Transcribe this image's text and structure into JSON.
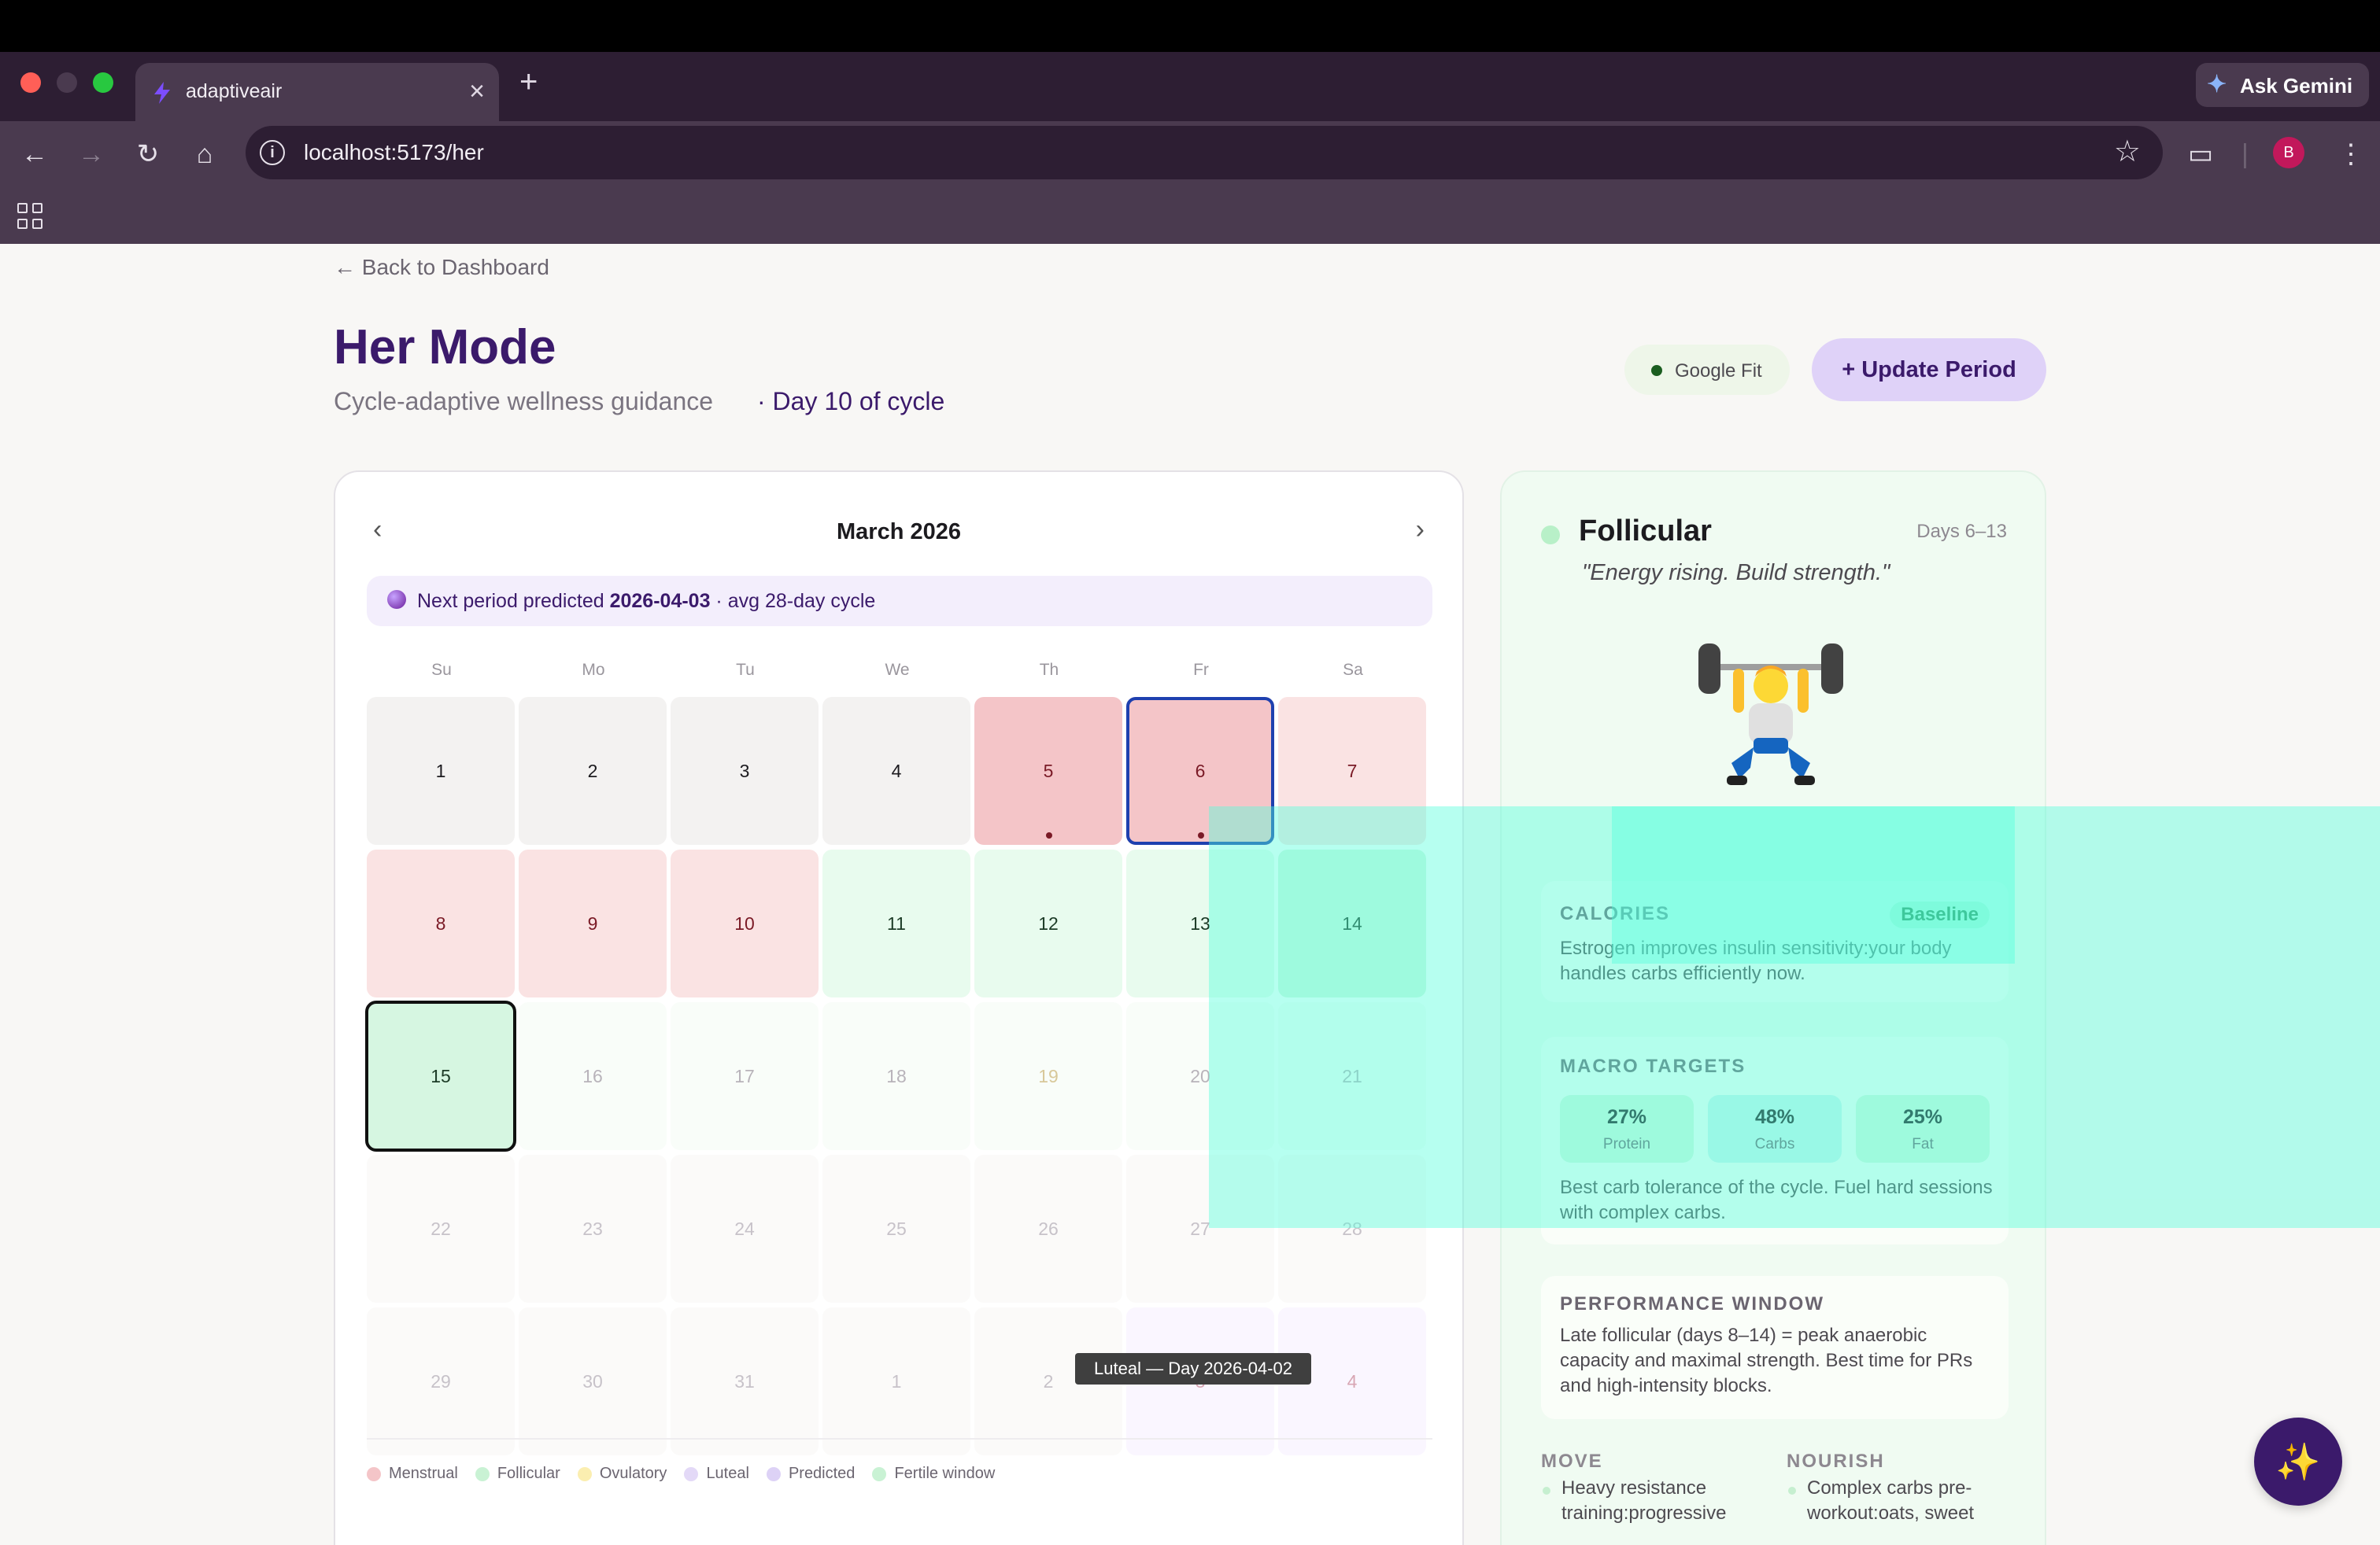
{
  "browser": {
    "tab_title": "adaptiveair",
    "tab_close": "×",
    "new_tab": "+",
    "gemini_label": "Ask Gemini",
    "url": "localhost:5173/her",
    "profile_initial": "B"
  },
  "header": {
    "back_link": "← Back to Dashboard",
    "title": "Her Mode",
    "subtitle": "Cycle-adaptive wellness guidance",
    "day_of_cycle": "· Day 10 of cycle",
    "google_fit": "Google Fit",
    "update_button": "+ Update Period"
  },
  "calendar": {
    "prev": "‹",
    "next": "›",
    "month": "March 2026",
    "prediction_prefix": "Next period predicted ",
    "prediction_date": "2026-04-03",
    "prediction_suffix": " · avg 28-day cycle",
    "weekdays": [
      "Su",
      "Mo",
      "Tu",
      "We",
      "Th",
      "Fr",
      "Sa"
    ],
    "weeks": [
      [
        "1",
        "2",
        "3",
        "4",
        "5",
        "6",
        "7"
      ],
      [
        "8",
        "9",
        "10",
        "11",
        "12",
        "13",
        "14"
      ],
      [
        "15",
        "16",
        "17",
        "18",
        "19",
        "20",
        "21"
      ],
      [
        "22",
        "23",
        "24",
        "25",
        "26",
        "27",
        "28"
      ],
      [
        "29",
        "30",
        "31",
        "1",
        "2",
        "3",
        "4"
      ]
    ],
    "tooltip": "Luteal — Day 2026-04-02",
    "legend": [
      {
        "label": "Menstrual",
        "color": "#f4c5c8"
      },
      {
        "label": "Follicular",
        "color": "#c9f2d4"
      },
      {
        "label": "Ovulatory",
        "color": "#fbeeb0"
      },
      {
        "label": "Luteal",
        "color": "#e3d9f7"
      },
      {
        "label": "Predicted",
        "color": "#ddd2f6"
      },
      {
        "label": "Fertile window",
        "color": "#c9f2d4"
      }
    ]
  },
  "phase": {
    "name": "Follicular",
    "days": "Days 6–13",
    "quote": "\"Energy rising. Build strength.\"",
    "illustration": "weightlifter-emoji",
    "calories": {
      "title": "CALORIES",
      "badge": "Baseline",
      "body": "Estrogen improves insulin sensitivity:your body handles carbs efficiently now."
    },
    "macros": {
      "title": "MACRO TARGETS",
      "items": [
        {
          "value": "27%",
          "label": "Protein",
          "color": "#d6f7df"
        },
        {
          "value": "48%",
          "label": "Carbs",
          "color": "#cdf3ee"
        },
        {
          "value": "25%",
          "label": "Fat",
          "color": "#d6f7df"
        }
      ],
      "note": "Best carb tolerance of the cycle. Fuel hard sessions with complex carbs."
    },
    "performance": {
      "title": "PERFORMANCE WINDOW",
      "body": "Late follicular (days 8–14) = peak anaerobic capacity and maximal strength. Best time for PRs and high-intensity blocks."
    },
    "move": {
      "title": "MOVE",
      "item": "Heavy resistance training:progressive"
    },
    "nourish": {
      "title": "NOURISH",
      "item": "Complex carbs pre-workout:oats, sweet"
    }
  },
  "fab_icon": "sparkles-icon"
}
